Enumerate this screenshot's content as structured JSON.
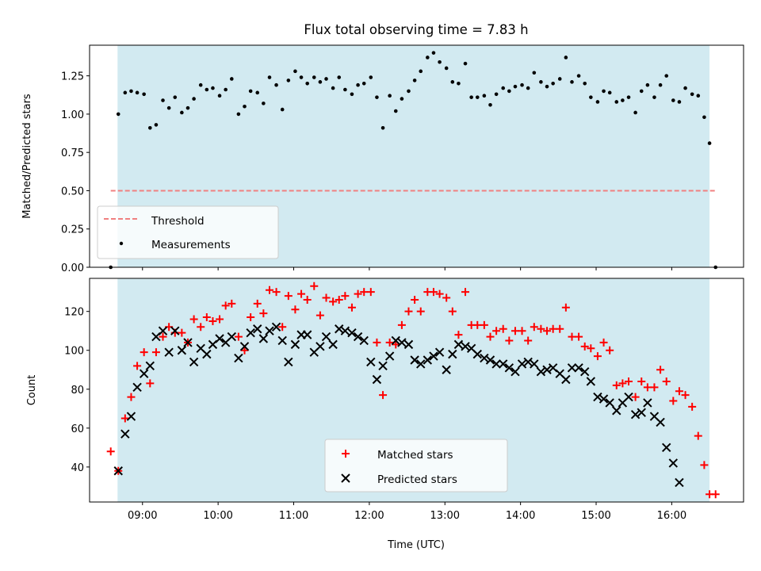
{
  "title": "Flux total observing time = 7.83 h",
  "colors": {
    "shade": "#add8e6",
    "threshold": "#f08080",
    "matched": "#ff0000",
    "predicted": "#000000",
    "measurements": "#000000"
  },
  "chart_data": [
    {
      "type": "scatter",
      "panel": "top",
      "ylabel": "Matched/Predicted stars",
      "ylim": [
        0,
        1.45
      ],
      "yticks": [
        "0.00",
        "0.25",
        "0.50",
        "0.75",
        "1.00",
        "1.25"
      ],
      "xlim": [
        8.3,
        16.95
      ],
      "shaded_span": [
        8.67,
        16.5
      ],
      "legend": {
        "placement": "lower-left",
        "entries": [
          "Threshold",
          "Measurements"
        ]
      },
      "threshold": {
        "name": "Threshold",
        "y": 0.5,
        "x_range": [
          8.58,
          16.58
        ]
      },
      "series": [
        {
          "name": "Measurements",
          "x": [
            8.58,
            8.68,
            8.77,
            8.85,
            8.93,
            9.02,
            9.1,
            9.18,
            9.27,
            9.35,
            9.43,
            9.52,
            9.6,
            9.68,
            9.77,
            9.85,
            9.93,
            10.02,
            10.1,
            10.18,
            10.27,
            10.35,
            10.43,
            10.52,
            10.6,
            10.68,
            10.77,
            10.85,
            10.93,
            11.02,
            11.1,
            11.18,
            11.27,
            11.35,
            11.43,
            11.52,
            11.6,
            11.68,
            11.77,
            11.85,
            11.93,
            12.02,
            12.1,
            12.18,
            12.27,
            12.35,
            12.43,
            12.52,
            12.6,
            12.68,
            12.77,
            12.85,
            12.93,
            13.02,
            13.1,
            13.18,
            13.27,
            13.35,
            13.43,
            13.52,
            13.6,
            13.68,
            13.77,
            13.85,
            13.93,
            14.02,
            14.1,
            14.18,
            14.27,
            14.35,
            14.43,
            14.52,
            14.6,
            14.68,
            14.77,
            14.85,
            14.93,
            15.02,
            15.1,
            15.18,
            15.27,
            15.35,
            15.43,
            15.52,
            15.6,
            15.68,
            15.77,
            15.85,
            15.93,
            16.02,
            16.1,
            16.18,
            16.27,
            16.35,
            16.43,
            16.5,
            16.58
          ],
          "y": [
            0.0,
            1.0,
            1.14,
            1.15,
            1.14,
            1.13,
            0.91,
            0.93,
            1.09,
            1.04,
            1.11,
            1.01,
            1.04,
            1.1,
            1.19,
            1.16,
            1.17,
            1.12,
            1.16,
            1.23,
            1.0,
            1.05,
            1.15,
            1.14,
            1.07,
            1.24,
            1.19,
            1.03,
            1.22,
            1.28,
            1.24,
            1.2,
            1.24,
            1.21,
            1.23,
            1.17,
            1.24,
            1.16,
            1.13,
            1.19,
            1.2,
            1.24,
            1.11,
            0.91,
            1.12,
            1.02,
            1.1,
            1.15,
            1.22,
            1.28,
            1.37,
            1.4,
            1.34,
            1.3,
            1.21,
            1.2,
            1.33,
            1.11,
            1.11,
            1.12,
            1.06,
            1.13,
            1.17,
            1.15,
            1.18,
            1.19,
            1.17,
            1.27,
            1.21,
            1.18,
            1.2,
            1.23,
            1.37,
            1.21,
            1.25,
            1.2,
            1.11,
            1.08,
            1.15,
            1.14,
            1.08,
            1.09,
            1.11,
            1.01,
            1.15,
            1.19,
            1.11,
            1.19,
            1.25,
            1.09,
            1.08,
            1.17,
            1.13,
            1.12,
            0.98,
            0.81,
            0.0
          ]
        }
      ]
    },
    {
      "type": "scatter",
      "panel": "bottom",
      "xlabel": "Time (UTC)",
      "ylabel": "Count",
      "ylim": [
        22,
        137
      ],
      "yticks": [
        "40",
        "60",
        "80",
        "100",
        "120"
      ],
      "xlim": [
        8.3,
        16.95
      ],
      "xticks": [
        "09:00",
        "10:00",
        "11:00",
        "12:00",
        "13:00",
        "14:00",
        "15:00",
        "16:00"
      ],
      "shaded_span": [
        8.67,
        16.5
      ],
      "legend": {
        "placement": "lower-center",
        "entries": [
          "Matched stars",
          "Predicted stars"
        ]
      },
      "x": [
        8.58,
        8.68,
        8.77,
        8.85,
        8.93,
        9.02,
        9.1,
        9.18,
        9.27,
        9.35,
        9.43,
        9.52,
        9.6,
        9.68,
        9.77,
        9.85,
        9.93,
        10.02,
        10.1,
        10.18,
        10.27,
        10.35,
        10.43,
        10.52,
        10.6,
        10.68,
        10.77,
        10.85,
        10.93,
        11.02,
        11.1,
        11.18,
        11.27,
        11.35,
        11.43,
        11.52,
        11.6,
        11.68,
        11.77,
        11.85,
        11.93,
        12.02,
        12.1,
        12.18,
        12.27,
        12.35,
        12.43,
        12.52,
        12.6,
        12.68,
        12.77,
        12.85,
        12.93,
        13.02,
        13.1,
        13.18,
        13.27,
        13.35,
        13.43,
        13.52,
        13.6,
        13.68,
        13.77,
        13.85,
        13.93,
        14.02,
        14.1,
        14.18,
        14.27,
        14.35,
        14.43,
        14.52,
        14.6,
        14.68,
        14.77,
        14.85,
        14.93,
        15.02,
        15.1,
        15.18,
        15.27,
        15.35,
        15.43,
        15.52,
        15.6,
        15.68,
        15.77,
        15.85,
        15.93,
        16.02,
        16.1,
        16.18,
        16.27,
        16.35,
        16.43,
        16.5,
        16.58
      ],
      "series": [
        {
          "name": "Matched stars",
          "marker": "plus",
          "values": [
            48,
            38,
            65,
            76,
            92,
            99,
            83,
            99,
            107,
            112,
            109,
            109,
            104,
            116,
            112,
            117,
            115,
            116,
            123,
            124,
            107,
            100,
            117,
            124,
            119,
            131,
            130,
            112,
            128,
            121,
            129,
            126,
            133,
            118,
            127,
            125,
            126,
            128,
            122,
            129,
            130,
            130,
            104,
            77,
            104,
            103,
            113,
            120,
            126,
            120,
            130,
            130,
            129,
            127,
            120,
            108,
            130,
            113,
            113,
            113,
            107,
            110,
            111,
            105,
            110,
            110,
            105,
            112,
            111,
            110,
            111,
            111,
            122,
            107,
            107,
            102,
            101,
            97,
            104,
            100,
            82,
            83,
            84,
            76,
            84,
            81,
            81,
            90,
            84,
            74,
            79,
            77,
            71,
            56,
            41,
            26,
            26
          ]
        },
        {
          "name": "Predicted stars",
          "marker": "x",
          "values": [
            null,
            38,
            57,
            66,
            81,
            88,
            92,
            107,
            110,
            99,
            110,
            100,
            104,
            94,
            101,
            98,
            103,
            106,
            104,
            107,
            96,
            102,
            109,
            111,
            106,
            110,
            112,
            105,
            94,
            103,
            108,
            108,
            99,
            102,
            107,
            103,
            111,
            110,
            109,
            107,
            105,
            94,
            85,
            92,
            97,
            105,
            104,
            103,
            95,
            93,
            95,
            97,
            99,
            90,
            98,
            103,
            102,
            101,
            98,
            96,
            95,
            93,
            93,
            91,
            89,
            93,
            94,
            93,
            89,
            90,
            91,
            88,
            85,
            91,
            91,
            89,
            84,
            76,
            75,
            73,
            69,
            73,
            76,
            67,
            68,
            73,
            66,
            63,
            50,
            42,
            32,
            null,
            null,
            null,
            null,
            null,
            null
          ]
        }
      ]
    }
  ]
}
